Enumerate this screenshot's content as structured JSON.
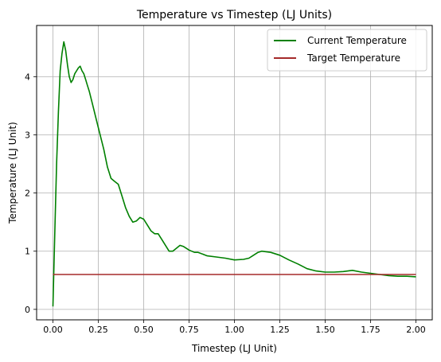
{
  "chart_data": {
    "type": "line",
    "title": "Temperature vs Timestep (LJ Units)",
    "xlabel": "Timestep (LJ Unit)",
    "ylabel": "Temperature (LJ Unit)",
    "xlim": [
      -0.09,
      2.09
    ],
    "ylim": [
      -0.18,
      4.88
    ],
    "xticks": [
      0.0,
      0.25,
      0.5,
      0.75,
      1.0,
      1.25,
      1.5,
      1.75,
      2.0
    ],
    "xtick_labels": [
      "0.00",
      "0.25",
      "0.50",
      "0.75",
      "1.00",
      "1.25",
      "1.50",
      "1.75",
      "2.00"
    ],
    "yticks": [
      0,
      1,
      2,
      3,
      4
    ],
    "ytick_labels": [
      "0",
      "1",
      "2",
      "3",
      "4"
    ],
    "grid": true,
    "legend_position": "top-right",
    "series": [
      {
        "name": "Current Temperature",
        "color": "#008000",
        "x": [
          0.0,
          0.01,
          0.02,
          0.03,
          0.04,
          0.05,
          0.06,
          0.07,
          0.08,
          0.09,
          0.1,
          0.11,
          0.12,
          0.13,
          0.14,
          0.15,
          0.16,
          0.17,
          0.18,
          0.19,
          0.2,
          0.22,
          0.24,
          0.26,
          0.28,
          0.3,
          0.32,
          0.34,
          0.36,
          0.38,
          0.4,
          0.42,
          0.44,
          0.46,
          0.48,
          0.5,
          0.52,
          0.54,
          0.56,
          0.58,
          0.6,
          0.62,
          0.64,
          0.66,
          0.68,
          0.7,
          0.72,
          0.75,
          0.78,
          0.8,
          0.85,
          0.9,
          0.95,
          1.0,
          1.05,
          1.08,
          1.1,
          1.13,
          1.15,
          1.2,
          1.25,
          1.3,
          1.35,
          1.4,
          1.45,
          1.5,
          1.55,
          1.6,
          1.65,
          1.7,
          1.75,
          1.8,
          1.85,
          1.9,
          1.95,
          2.0
        ],
        "y": [
          0.05,
          1.3,
          2.5,
          3.4,
          4.1,
          4.4,
          4.6,
          4.45,
          4.2,
          4.0,
          3.9,
          3.95,
          4.05,
          4.1,
          4.15,
          4.18,
          4.1,
          4.05,
          3.95,
          3.85,
          3.75,
          3.5,
          3.25,
          3.0,
          2.75,
          2.45,
          2.25,
          2.2,
          2.15,
          1.95,
          1.75,
          1.6,
          1.5,
          1.52,
          1.58,
          1.55,
          1.45,
          1.35,
          1.3,
          1.3,
          1.2,
          1.1,
          1.0,
          1.0,
          1.05,
          1.1,
          1.08,
          1.02,
          0.98,
          0.98,
          0.92,
          0.9,
          0.88,
          0.85,
          0.86,
          0.88,
          0.92,
          0.98,
          1.0,
          0.98,
          0.93,
          0.85,
          0.78,
          0.7,
          0.66,
          0.64,
          0.64,
          0.65,
          0.67,
          0.64,
          0.62,
          0.6,
          0.58,
          0.57,
          0.57,
          0.56
        ]
      },
      {
        "name": "Target Temperature",
        "color": "#a52a2a",
        "x": [
          0.0,
          2.0
        ],
        "y": [
          0.6,
          0.6
        ]
      }
    ]
  }
}
